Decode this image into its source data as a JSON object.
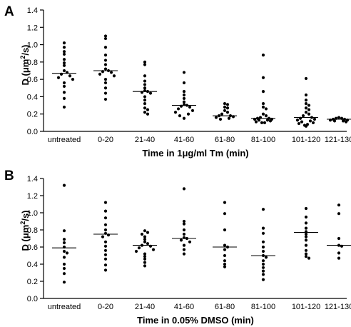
{
  "chart_data": [
    {
      "type": "scatter",
      "panel_label": "A",
      "ylabel_prefix": "D (",
      "ylabel_mu": "μm",
      "ylabel_sup": "2",
      "ylabel_suffix": "/s)",
      "xlabel": "Time in 1μg/ml Tm (min)",
      "ylim": [
        0,
        1.4
      ],
      "yticks": [
        "0.0",
        "0.2",
        "0.4",
        "0.6",
        "0.8",
        "1.0",
        "1.2",
        "1.4"
      ],
      "categories": [
        "untreated",
        "0-20",
        "21-40",
        "41-60",
        "61-80",
        "81-100",
        "101-120",
        "121-130"
      ],
      "medians": [
        0.67,
        0.7,
        0.46,
        0.3,
        0.18,
        0.15,
        0.16,
        0.14
      ],
      "points": [
        [
          1.02,
          0.97,
          0.92,
          0.89,
          0.83,
          0.79,
          0.76,
          0.7,
          0.68,
          0.66,
          0.64,
          0.62,
          0.6,
          0.56,
          0.52,
          0.45,
          0.38,
          0.28
        ],
        [
          1.1,
          1.07,
          0.97,
          0.88,
          0.82,
          0.77,
          0.72,
          0.7,
          0.69,
          0.68,
          0.66,
          0.64,
          0.6,
          0.56,
          0.5,
          0.44,
          0.37
        ],
        [
          0.8,
          0.77,
          0.64,
          0.58,
          0.54,
          0.5,
          0.47,
          0.46,
          0.45,
          0.44,
          0.4,
          0.36,
          0.32,
          0.27,
          0.25,
          0.22,
          0.2
        ],
        [
          0.68,
          0.56,
          0.46,
          0.42,
          0.38,
          0.34,
          0.31,
          0.3,
          0.29,
          0.28,
          0.26,
          0.24,
          0.22,
          0.2,
          0.18,
          0.15
        ],
        [
          0.32,
          0.31,
          0.28,
          0.27,
          0.24,
          0.22,
          0.2,
          0.18,
          0.18,
          0.17,
          0.16,
          0.15,
          0.14
        ],
        [
          0.88,
          0.62,
          0.46,
          0.32,
          0.28,
          0.26,
          0.2,
          0.18,
          0.16,
          0.15,
          0.15,
          0.14,
          0.14,
          0.13,
          0.13,
          0.12,
          0.11,
          0.1,
          0.1
        ],
        [
          0.61,
          0.42,
          0.36,
          0.32,
          0.3,
          0.27,
          0.25,
          0.22,
          0.2,
          0.18,
          0.16,
          0.15,
          0.14,
          0.13,
          0.12,
          0.11,
          0.1,
          0.09,
          0.08,
          0.07,
          0.06
        ],
        [
          0.16,
          0.15,
          0.15,
          0.14,
          0.14,
          0.13,
          0.13,
          0.12,
          0.12,
          0.11
        ]
      ]
    },
    {
      "type": "scatter",
      "panel_label": "B",
      "ylabel_prefix": "D (",
      "ylabel_mu": "μm",
      "ylabel_sup": "2",
      "ylabel_suffix": "/s)",
      "xlabel": "Time in 0.05% DMSO (min)",
      "ylim": [
        0,
        1.4
      ],
      "yticks": [
        "0.0",
        "0.2",
        "0.4",
        "0.6",
        "0.8",
        "1.0",
        "1.2",
        "1.4"
      ],
      "categories": [
        "untreated",
        "0-20",
        "21-40",
        "41-60",
        "61-80",
        "81-100",
        "101-120",
        "121-130"
      ],
      "medians": [
        0.59,
        0.75,
        0.62,
        0.7,
        0.6,
        0.5,
        0.77,
        0.62
      ],
      "points": [
        [
          1.32,
          0.79,
          0.69,
          0.65,
          0.6,
          0.55,
          0.53,
          0.48,
          0.4,
          0.35,
          0.29,
          0.19
        ],
        [
          1.12,
          1.02,
          0.94,
          0.86,
          0.8,
          0.76,
          0.74,
          0.72,
          0.66,
          0.61,
          0.56,
          0.51,
          0.46,
          0.39,
          0.33
        ],
        [
          0.79,
          0.77,
          0.75,
          0.72,
          0.69,
          0.66,
          0.64,
          0.62,
          0.61,
          0.59,
          0.57,
          0.55,
          0.52,
          0.49,
          0.46,
          0.42,
          0.38
        ],
        [
          1.28,
          0.9,
          0.87,
          0.8,
          0.75,
          0.71,
          0.7,
          0.68,
          0.66,
          0.62,
          0.57,
          0.52
        ],
        [
          1.12,
          0.99,
          0.8,
          0.62,
          0.6,
          0.57,
          0.5,
          0.44,
          0.4,
          0.37
        ],
        [
          1.04,
          0.82,
          0.76,
          0.66,
          0.6,
          0.55,
          0.5,
          0.48,
          0.44,
          0.4,
          0.36,
          0.32,
          0.28,
          0.22
        ],
        [
          1.05,
          0.95,
          0.88,
          0.82,
          0.78,
          0.75,
          0.72,
          0.68,
          0.62,
          0.56,
          0.52,
          0.49,
          0.47
        ],
        [
          1.09,
          0.99,
          0.7,
          0.62,
          0.61,
          0.53,
          0.47
        ]
      ]
    }
  ]
}
